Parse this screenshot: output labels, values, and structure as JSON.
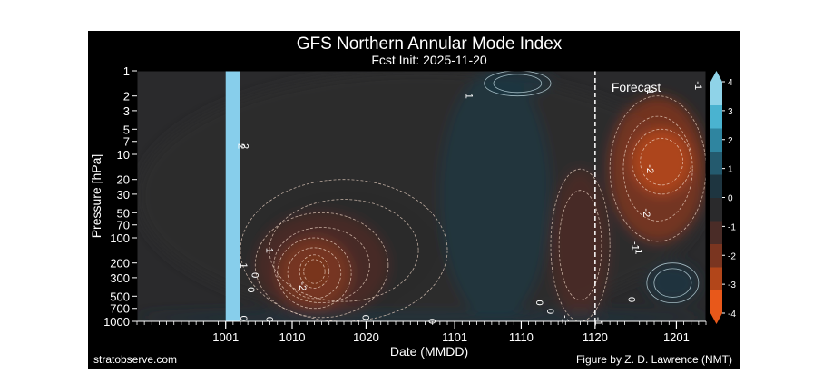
{
  "chart_data": {
    "type": "heatmap",
    "title": "GFS Northern Annular Mode Index",
    "subtitle": "Fcst Init: 2025-11-20",
    "xlabel": "Date (MMDD)",
    "ylabel": "Pressure [hPa]",
    "x_tick_labels": [
      "1001",
      "1010",
      "1020",
      "1101",
      "1110",
      "1120",
      "1201"
    ],
    "x_tick_days": [
      0,
      9,
      19,
      31,
      40,
      50,
      61
    ],
    "x_range_days": [
      -12,
      65
    ],
    "y_scale": "log",
    "y_ticks": [
      1,
      2,
      3,
      5,
      7,
      10,
      20,
      30,
      50,
      70,
      100,
      200,
      300,
      500,
      700,
      1000
    ],
    "ylim": [
      1000,
      1
    ],
    "colorbar": {
      "ticks": [
        4,
        3,
        2,
        1,
        0,
        -1,
        -2,
        -3,
        -4
      ],
      "range": [
        -4,
        4
      ],
      "colormap": [
        "#e8581a",
        "#b2461a",
        "#7a3520",
        "#4a2c27",
        "#2a2a2c",
        "#1e3540",
        "#245a6e",
        "#2f85a0",
        "#4ab3d0",
        "#8fd3e8"
      ]
    },
    "forecast_label": "Forecast",
    "forecast_start": "1120",
    "missing_data_band": [
      "1001",
      "1002"
    ],
    "missing_data_color": "#87ceeb",
    "contour_labels": [
      "1",
      "2",
      "2",
      "-1",
      "1",
      "0",
      "0",
      "-2",
      "0",
      "0",
      "0",
      "0",
      "0",
      "-1",
      "-1",
      "-1",
      "0",
      "-1",
      "-1",
      "-2",
      "-2",
      "-1",
      "0"
    ],
    "anomaly_regions": [
      {
        "x_days": [
          -12,
          65
        ],
        "p_hpa": [
          1,
          1000
        ],
        "value": -0.2
      },
      {
        "x_days": [
          2,
          30
        ],
        "p_hpa": [
          20,
          1000
        ],
        "value": -0.8
      },
      {
        "x_days": [
          4,
          22
        ],
        "p_hpa": [
          50,
          900
        ],
        "value": -1.3
      },
      {
        "x_days": [
          7,
          17
        ],
        "p_hpa": [
          100,
          700
        ],
        "value": -1.8
      },
      {
        "x_days": [
          10,
          14
        ],
        "p_hpa": [
          160,
          400
        ],
        "value": -2.4
      },
      {
        "x_days": [
          29,
          44
        ],
        "p_hpa": [
          1,
          1000
        ],
        "value": 0.1
      },
      {
        "x_days": [
          35,
          44
        ],
        "p_hpa": [
          1,
          2
        ],
        "value": 0.6
      },
      {
        "x_days": [
          44,
          52
        ],
        "p_hpa": [
          15,
          1000
        ],
        "value": -1.2
      },
      {
        "x_days": [
          52,
          65
        ],
        "p_hpa": [
          2,
          110
        ],
        "value": -1.9
      },
      {
        "x_days": [
          55,
          63
        ],
        "p_hpa": [
          5,
          30
        ],
        "value": -2.7
      },
      {
        "x_days": [
          57,
          64
        ],
        "p_hpa": [
          200,
          600
        ],
        "value": 0.6
      },
      {
        "x_days": [
          -12,
          65
        ],
        "p_hpa": [
          800,
          1000
        ],
        "value": 0.3
      }
    ]
  },
  "footer": {
    "source": "stratobserve.com",
    "credit": "Figure by Z. D. Lawrence (NMT)"
  }
}
